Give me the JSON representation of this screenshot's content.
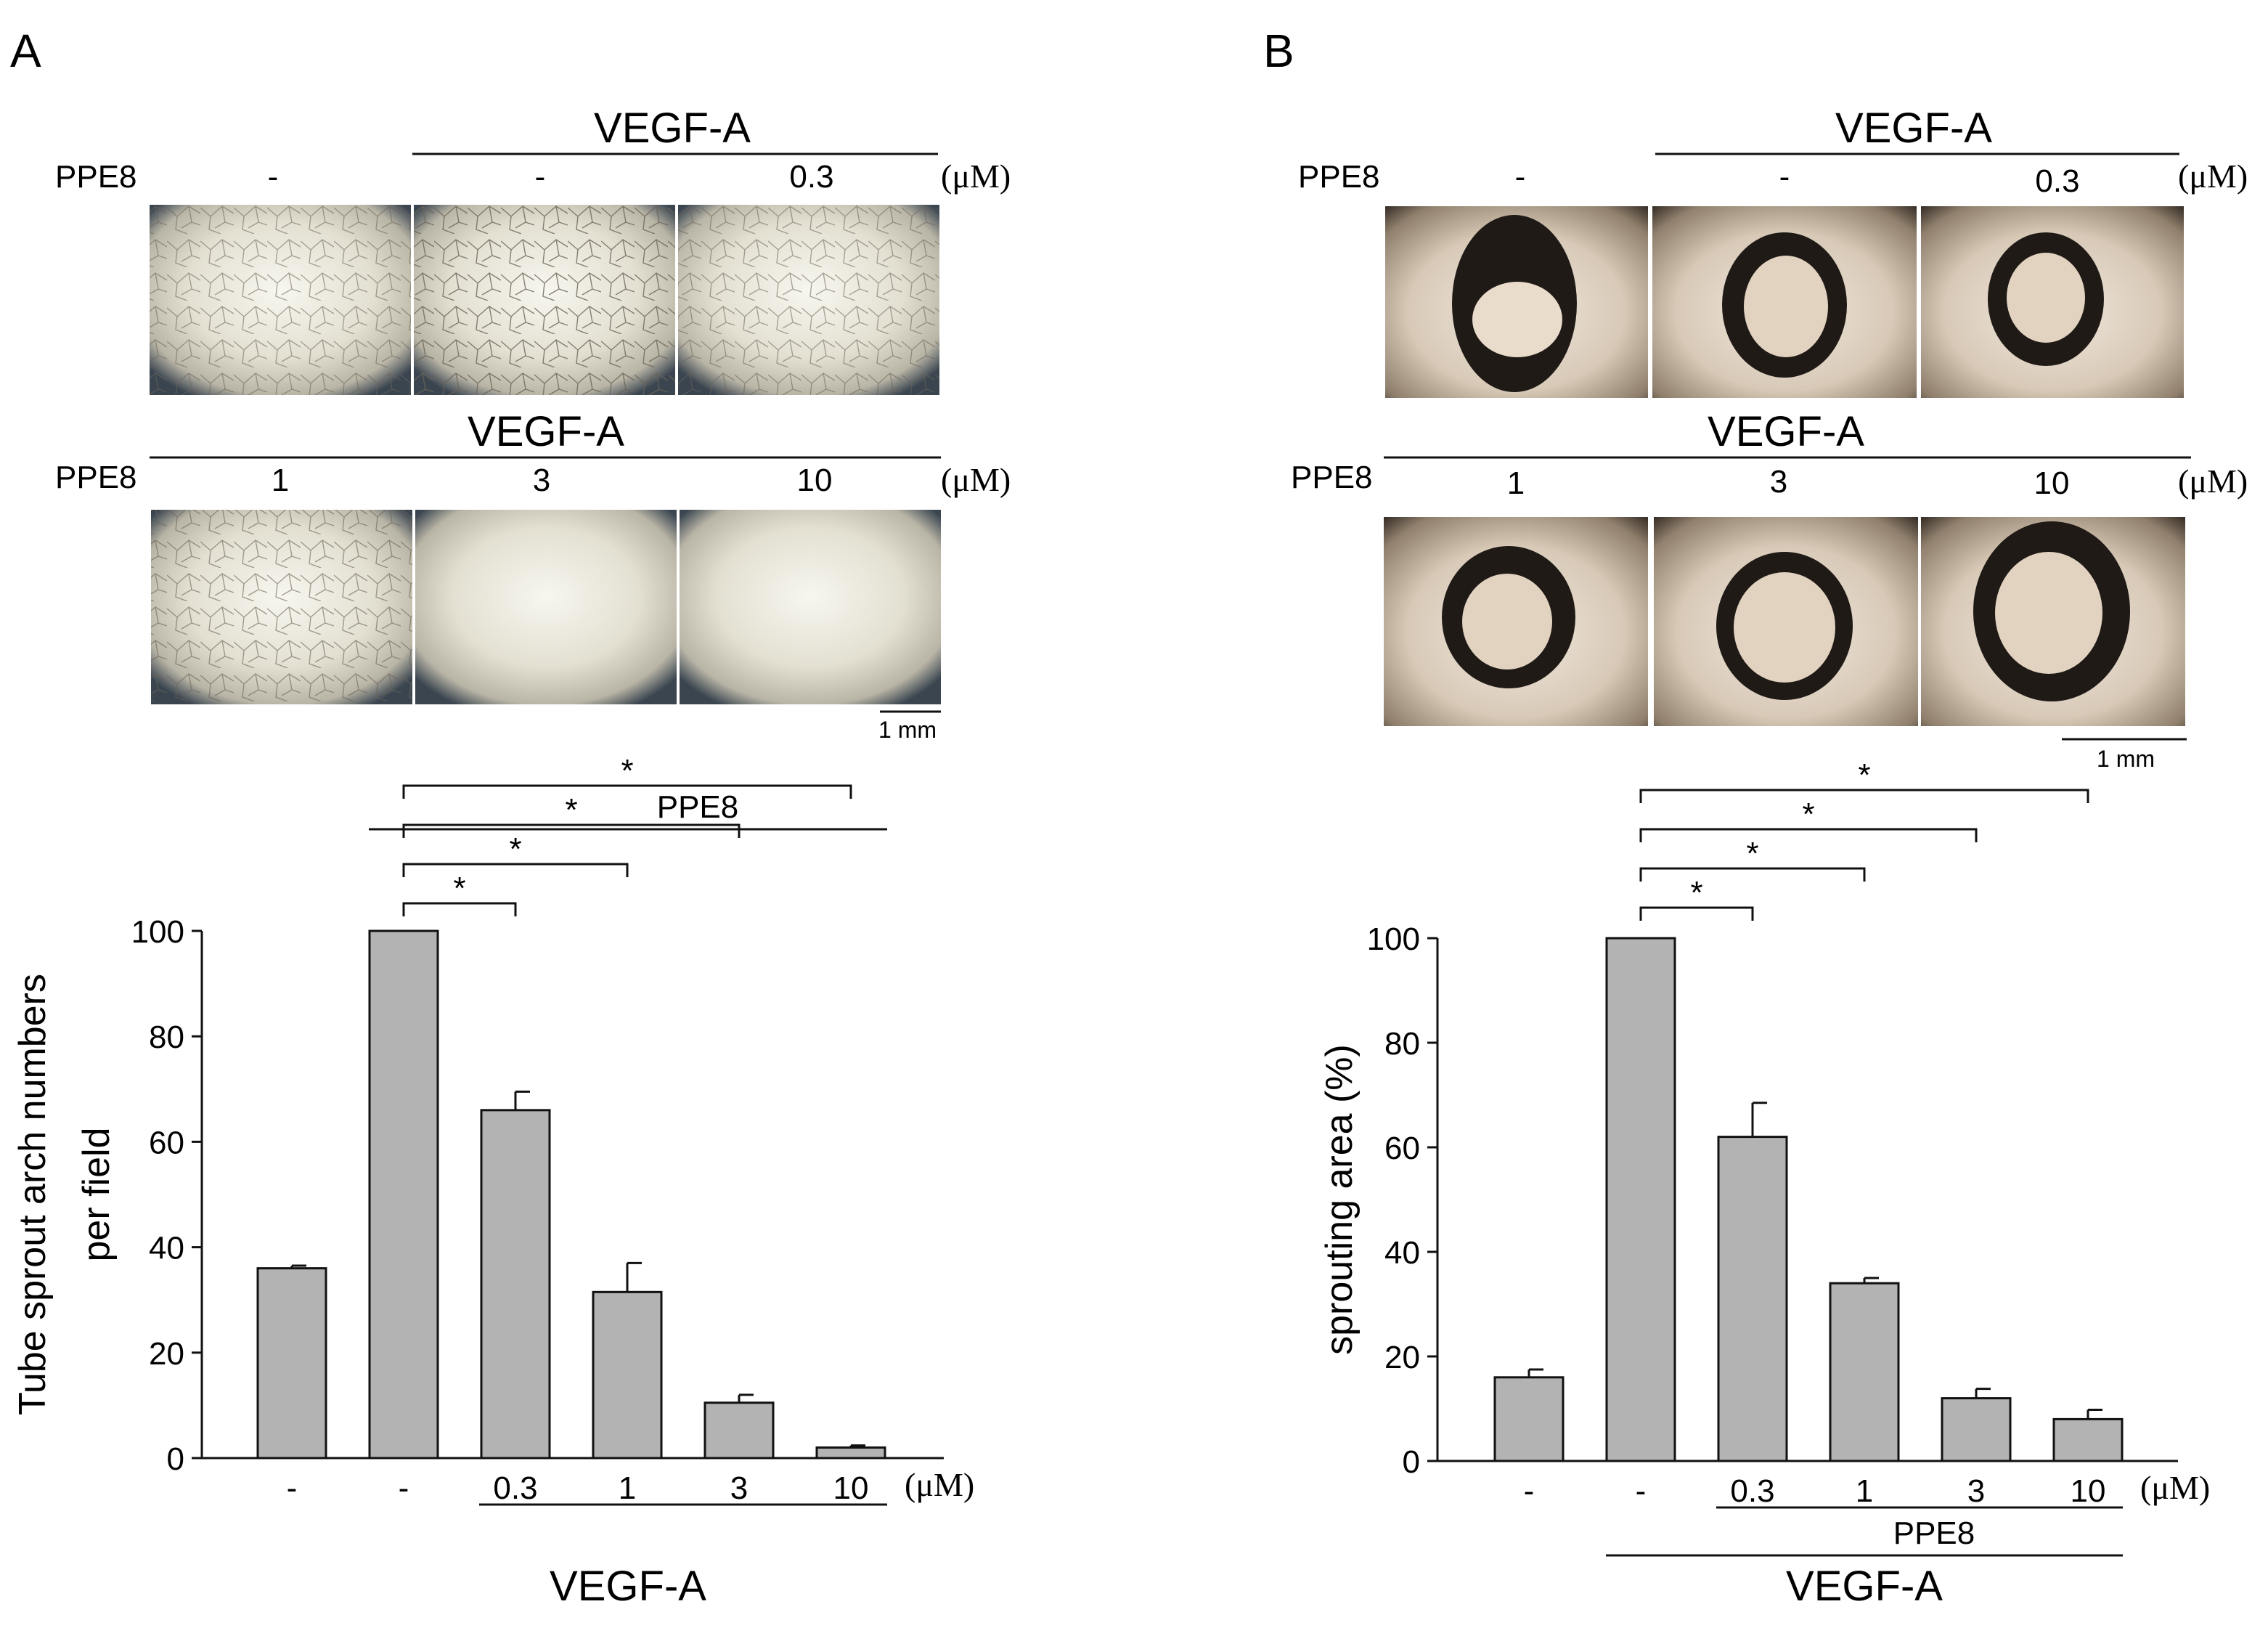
{
  "panels": [
    {
      "letter": "A",
      "images": {
        "row1": {
          "group": "VEGF-A",
          "ppe8_label": "PPE8",
          "doses": [
            "-",
            "-",
            "0.3"
          ],
          "unit": "(μM)"
        },
        "row2": {
          "group": "VEGF-A",
          "ppe8_label": "PPE8",
          "doses": [
            "1",
            "3",
            "10"
          ],
          "unit": "(μM)"
        },
        "scale_bar": "1 mm",
        "style": "matrigel"
      },
      "chart_data": {
        "type": "bar",
        "ylabel": "Tube sprout arch numbers per field",
        "ylabel_lines": [
          "Tube sprout arch numbers",
          "per field"
        ],
        "ylim": [
          0,
          100
        ],
        "yticks": [
          0,
          20,
          40,
          60,
          80,
          100
        ],
        "categories": [
          "-",
          "-",
          "0.3",
          "1",
          "3",
          "10"
        ],
        "values": [
          36,
          100,
          66,
          31.5,
          10.5,
          2
        ],
        "errors": [
          0.5,
          0,
          3.5,
          5.5,
          1.5,
          0.4
        ],
        "x_unit": "(μM)",
        "group_labels": {
          "inner": "PPE8",
          "outer": "VEGF-A"
        },
        "significance": [
          {
            "from": 1,
            "to": 2,
            "label": "*"
          },
          {
            "from": 1,
            "to": 3,
            "label": "*"
          },
          {
            "from": 1,
            "to": 4,
            "label": "*"
          },
          {
            "from": 1,
            "to": 5,
            "label": "*"
          }
        ]
      }
    },
    {
      "letter": "B",
      "images": {
        "row1": {
          "group": "VEGF-A",
          "ppe8_label": "PPE8",
          "doses": [
            "-",
            "-",
            "0.3"
          ],
          "unit": "(μM)"
        },
        "row2": {
          "group": "VEGF-A",
          "ppe8_label": "PPE8",
          "doses": [
            "1",
            "3",
            "10"
          ],
          "unit": "(μM)"
        },
        "scale_bar": "1 mm",
        "style": "ring"
      },
      "chart_data": {
        "type": "bar",
        "ylabel": "sprouting area (%)",
        "ylabel_lines": [
          "sprouting area (%)"
        ],
        "ylim": [
          0,
          100
        ],
        "yticks": [
          0,
          20,
          40,
          60,
          80,
          100
        ],
        "categories": [
          "-",
          "-",
          "0.3",
          "1",
          "3",
          "10"
        ],
        "values": [
          16,
          100,
          62,
          34,
          12,
          8
        ],
        "errors": [
          1.5,
          0,
          6.5,
          1,
          1.8,
          1.8
        ],
        "x_unit": "(μM)",
        "group_labels": {
          "inner": "PPE8",
          "outer": "VEGF-A"
        },
        "significance": [
          {
            "from": 1,
            "to": 2,
            "label": "*"
          },
          {
            "from": 1,
            "to": 3,
            "label": "*"
          },
          {
            "from": 1,
            "to": 4,
            "label": "*"
          },
          {
            "from": 1,
            "to": 5,
            "label": "*"
          }
        ]
      }
    }
  ]
}
